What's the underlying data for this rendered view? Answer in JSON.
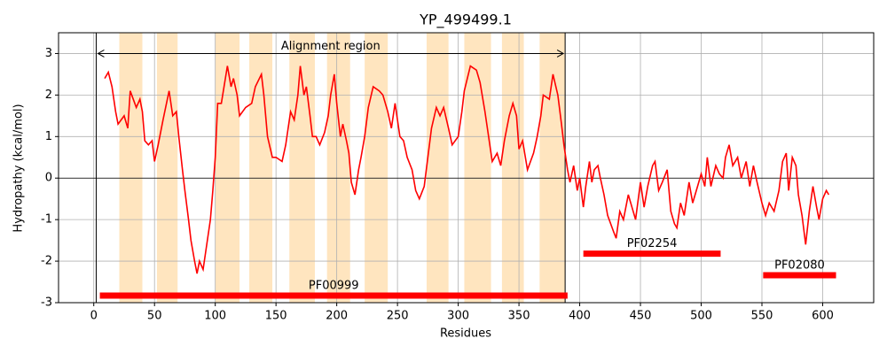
{
  "chart_data": {
    "type": "line",
    "title": "YP_499499.1",
    "x_label": "Residues",
    "y_label": "Hydropathy (kcal/mol)",
    "x": [
      9,
      12,
      15,
      18,
      20,
      25,
      28,
      30,
      35,
      38,
      40,
      42,
      45,
      48,
      50,
      53,
      57,
      62,
      65,
      68,
      70,
      73,
      75,
      78,
      80,
      83,
      85,
      87,
      90,
      93,
      96,
      98,
      100,
      102,
      105,
      110,
      113,
      115,
      118,
      120,
      125,
      130,
      133,
      138,
      140,
      143,
      147,
      150,
      155,
      158,
      160,
      162,
      165,
      168,
      170,
      173,
      175,
      178,
      180,
      183,
      186,
      190,
      193,
      195,
      198,
      200,
      203,
      205,
      208,
      210,
      212,
      215,
      218,
      220,
      223,
      226,
      230,
      235,
      238,
      242,
      245,
      248,
      252,
      255,
      258,
      262,
      265,
      268,
      272,
      275,
      278,
      282,
      285,
      288,
      292,
      295,
      300,
      303,
      305,
      310,
      315,
      318,
      322,
      325,
      328,
      332,
      335,
      338,
      342,
      345,
      348,
      350,
      353,
      357,
      362,
      365,
      368,
      370,
      375,
      378,
      382,
      385,
      387,
      390,
      392,
      395,
      398,
      400,
      403,
      405,
      408,
      410,
      412,
      415,
      417,
      420,
      423,
      428,
      430,
      433,
      436,
      440,
      443,
      446,
      450,
      453,
      456,
      460,
      462,
      465,
      468,
      472,
      475,
      478,
      480,
      483,
      486,
      490,
      493,
      497,
      500,
      503,
      505,
      508,
      512,
      515,
      518,
      520,
      523,
      526,
      530,
      533,
      537,
      540,
      543,
      546,
      550,
      553,
      556,
      560,
      564,
      567,
      570,
      572,
      575,
      578,
      580,
      583,
      586,
      589,
      592,
      595,
      597,
      600,
      603,
      605
    ],
    "values": [
      2.4,
      2.55,
      2.2,
      1.6,
      1.3,
      1.5,
      1.2,
      2.1,
      1.7,
      1.9,
      1.6,
      0.9,
      0.8,
      0.9,
      0.4,
      0.8,
      1.4,
      2.1,
      1.5,
      1.6,
      1.0,
      0.2,
      -0.3,
      -1.0,
      -1.5,
      -2.0,
      -2.3,
      -2.0,
      -2.2,
      -1.6,
      -1.0,
      -0.3,
      0.5,
      1.8,
      1.8,
      2.7,
      2.2,
      2.4,
      2.0,
      1.5,
      1.7,
      1.8,
      2.2,
      2.5,
      2.0,
      1.0,
      0.5,
      0.5,
      0.4,
      0.8,
      1.2,
      1.6,
      1.4,
      2.0,
      2.7,
      2.0,
      2.2,
      1.5,
      1.0,
      1.0,
      0.8,
      1.1,
      1.5,
      2.0,
      2.5,
      1.8,
      1.0,
      1.3,
      0.9,
      0.6,
      -0.1,
      -0.4,
      0.2,
      0.5,
      1.0,
      1.7,
      2.2,
      2.1,
      2.0,
      1.6,
      1.2,
      1.8,
      1.0,
      0.9,
      0.5,
      0.2,
      -0.3,
      -0.5,
      -0.2,
      0.5,
      1.2,
      1.7,
      1.5,
      1.7,
      1.2,
      0.8,
      1.0,
      1.6,
      2.1,
      2.7,
      2.6,
      2.3,
      1.6,
      1.0,
      0.4,
      0.6,
      0.3,
      0.9,
      1.5,
      1.8,
      1.5,
      0.7,
      0.9,
      0.2,
      0.6,
      1.0,
      1.5,
      2.0,
      1.9,
      2.5,
      2.0,
      1.3,
      0.8,
      0.2,
      -0.1,
      0.3,
      -0.3,
      0.0,
      -0.7,
      -0.2,
      0.4,
      -0.1,
      0.2,
      0.3,
      0.0,
      -0.4,
      -0.9,
      -1.3,
      -1.45,
      -0.8,
      -1.0,
      -0.4,
      -0.7,
      -1.0,
      -0.1,
      -0.7,
      -0.2,
      0.3,
      0.4,
      -0.3,
      -0.1,
      0.2,
      -0.8,
      -1.1,
      -1.2,
      -0.6,
      -0.9,
      -0.1,
      -0.6,
      -0.2,
      0.1,
      -0.2,
      0.5,
      -0.2,
      0.3,
      0.1,
      0.0,
      0.5,
      0.8,
      0.3,
      0.5,
      0.0,
      0.4,
      -0.2,
      0.3,
      -0.1,
      -0.6,
      -0.9,
      -0.6,
      -0.8,
      -0.3,
      0.4,
      0.6,
      -0.3,
      0.5,
      0.3,
      -0.4,
      -0.9,
      -1.6,
      -0.8,
      -0.2,
      -0.7,
      -1.0,
      -0.5,
      -0.3,
      -0.4
    ],
    "color": "#ff0000",
    "regions": [
      [
        21,
        40
      ],
      [
        52,
        69
      ],
      [
        100,
        120
      ],
      [
        128,
        147
      ],
      [
        161,
        182
      ],
      [
        192,
        211
      ],
      [
        223,
        242
      ],
      [
        274,
        292
      ],
      [
        305,
        327
      ],
      [
        336,
        354
      ],
      [
        367,
        388
      ]
    ],
    "region_color": "#ffe5bf",
    "alignment_region": {
      "label": "Alignment region",
      "start": 2,
      "end": 388,
      "y": 3
    },
    "domains": [
      {
        "label": "PF00999",
        "start": 5,
        "end": 390,
        "y": -2.83
      },
      {
        "label": "PF02254",
        "start": 403,
        "end": 516,
        "y": -1.82
      },
      {
        "label": "PF02080",
        "start": 551,
        "end": 611,
        "y": -2.34
      }
    ],
    "xlim": [
      -29,
      642
    ],
    "ylim": [
      -3,
      3.5
    ],
    "xticks": [
      0,
      50,
      100,
      150,
      200,
      250,
      300,
      350,
      400,
      450,
      500,
      550,
      600
    ],
    "yticks": [
      -3,
      -2,
      -1,
      0,
      1,
      2,
      3
    ],
    "grid": true
  }
}
